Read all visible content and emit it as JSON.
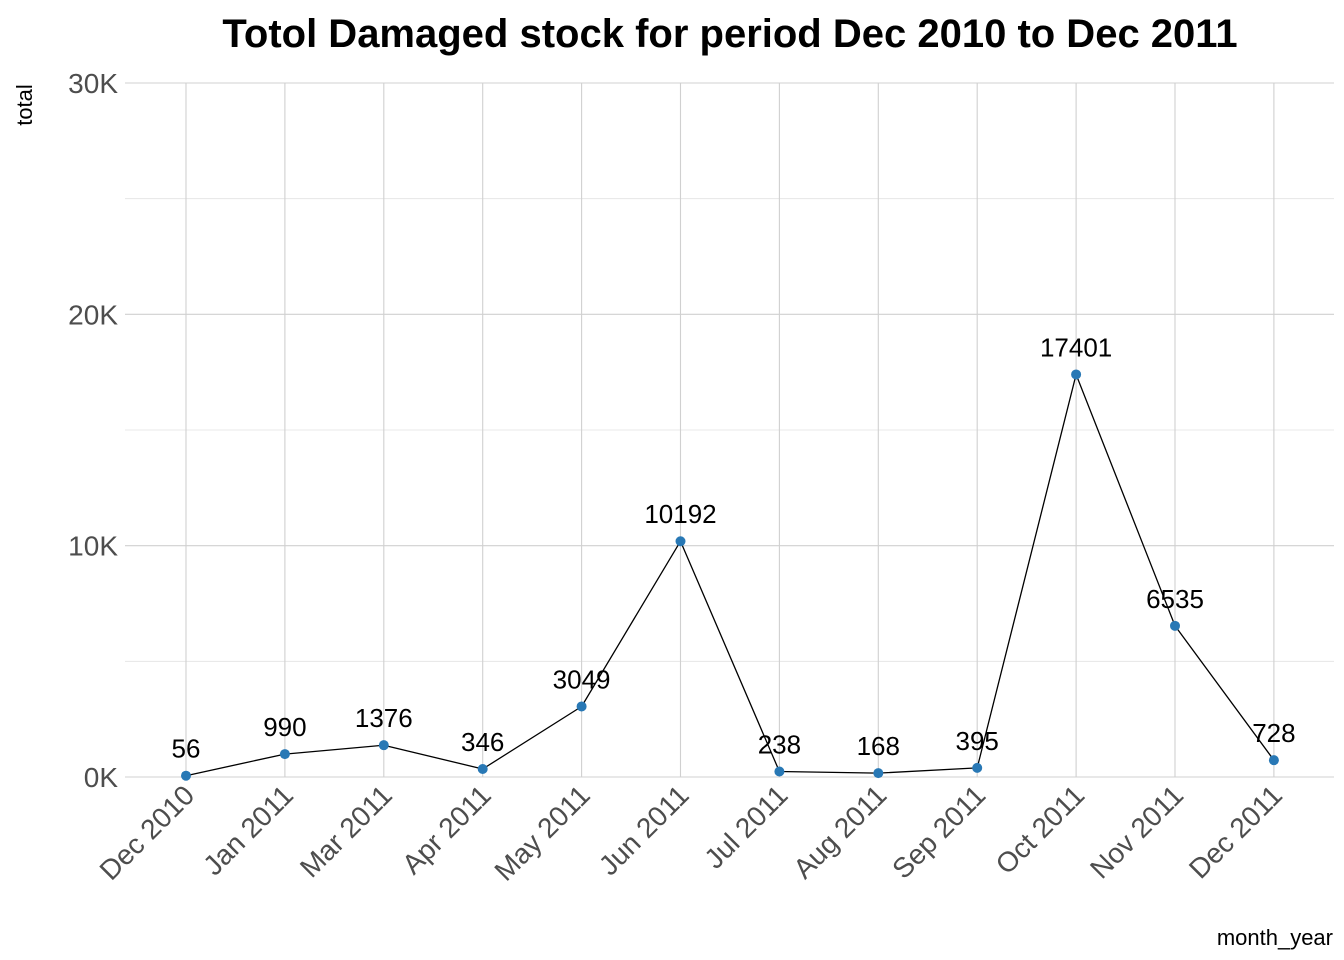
{
  "chart_data": {
    "type": "line",
    "title": "Totol Damaged stock for period Dec 2010 to Dec 2011",
    "xlabel": "month_year",
    "ylabel": "total",
    "categories": [
      "Dec 2010",
      "Jan 2011",
      "Mar 2011",
      "Apr 2011",
      "May 2011",
      "Jun 2011",
      "Jul 2011",
      "Aug 2011",
      "Sep 2011",
      "Oct 2011",
      "Nov 2011",
      "Dec 2011"
    ],
    "values": [
      56,
      990,
      1376,
      346,
      3049,
      10192,
      238,
      168,
      395,
      17401,
      6535,
      728
    ],
    "data_labels": [
      "56",
      "990",
      "1376",
      "346",
      "3049",
      "10192",
      "238",
      "168",
      "395",
      "17401",
      "6535",
      "728"
    ],
    "ylim": [
      0,
      30000
    ],
    "yticks": [
      0,
      10000,
      20000,
      30000
    ],
    "ytick_labels": [
      "0K",
      "10K",
      "20K",
      "30K"
    ],
    "grid": true,
    "legend": false,
    "colors": {
      "point": "#2878b5",
      "line": "#000000",
      "grid": "#d0d0d0"
    }
  }
}
